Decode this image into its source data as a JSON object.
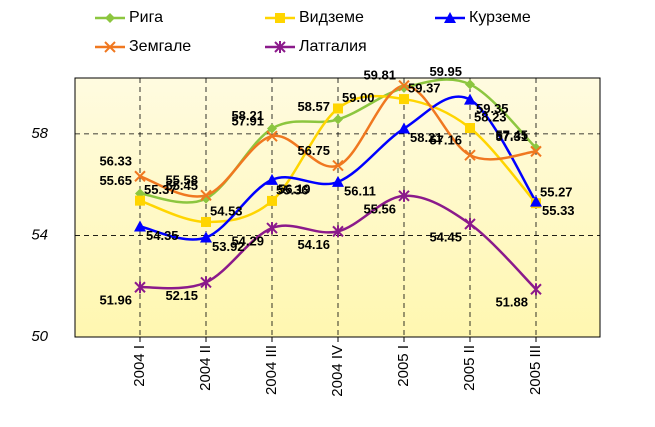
{
  "chart_data": {
    "type": "line",
    "categories": [
      "2004 I",
      "2004 II",
      "2004 III",
      "2004 IV",
      "2005 I",
      "2005 II",
      "2005 III"
    ],
    "series": [
      {
        "name": "Рига",
        "color": "#8cc63f",
        "marker": "diamond",
        "values": [
          55.65,
          55.45,
          58.21,
          58.57,
          59.81,
          59.95,
          57.45
        ],
        "value_labels": [
          "55.65",
          "55.45",
          "58.21",
          "58.57",
          "59.81",
          "59.95",
          "57.45"
        ]
      },
      {
        "name": "Видземе",
        "color": "#ffd500",
        "marker": "square",
        "values": [
          55.37,
          54.53,
          55.36,
          59.0,
          59.37,
          58.23,
          55.27
        ],
        "value_labels": [
          "55.37",
          "54.53",
          "55.36",
          "59.00",
          "59.37",
          "58.23",
          "55.27"
        ]
      },
      {
        "name": "Курземе",
        "color": "#0000ff",
        "marker": "triangle",
        "values": [
          54.35,
          53.92,
          56.19,
          56.11,
          58.21,
          59.35,
          55.33
        ],
        "value_labels": [
          "54.35",
          "53.92",
          "56.19",
          "56.11",
          "58.21",
          "59.35",
          "55.33"
        ]
      },
      {
        "name": "Земгале",
        "color": "#f07820",
        "marker": "x",
        "values": [
          56.33,
          55.58,
          57.91,
          56.75,
          59.9,
          57.16,
          57.31
        ],
        "value_labels": [
          "56.33",
          "55.58",
          "57.91",
          "56.75",
          null,
          "57.16",
          "57.31"
        ]
      },
      {
        "name": "Латгалия",
        "color": "#8b1a8b",
        "marker": "star",
        "values": [
          51.96,
          52.15,
          54.29,
          54.16,
          55.56,
          54.45,
          51.88
        ],
        "value_labels": [
          "51.96",
          "52.15",
          "54.29",
          "54.16",
          "55.56",
          "54.45",
          "51.88"
        ]
      }
    ],
    "ylim": [
      50,
      60.2
    ],
    "yticks": [
      50,
      54,
      58
    ],
    "grid": true,
    "legend": "top"
  }
}
